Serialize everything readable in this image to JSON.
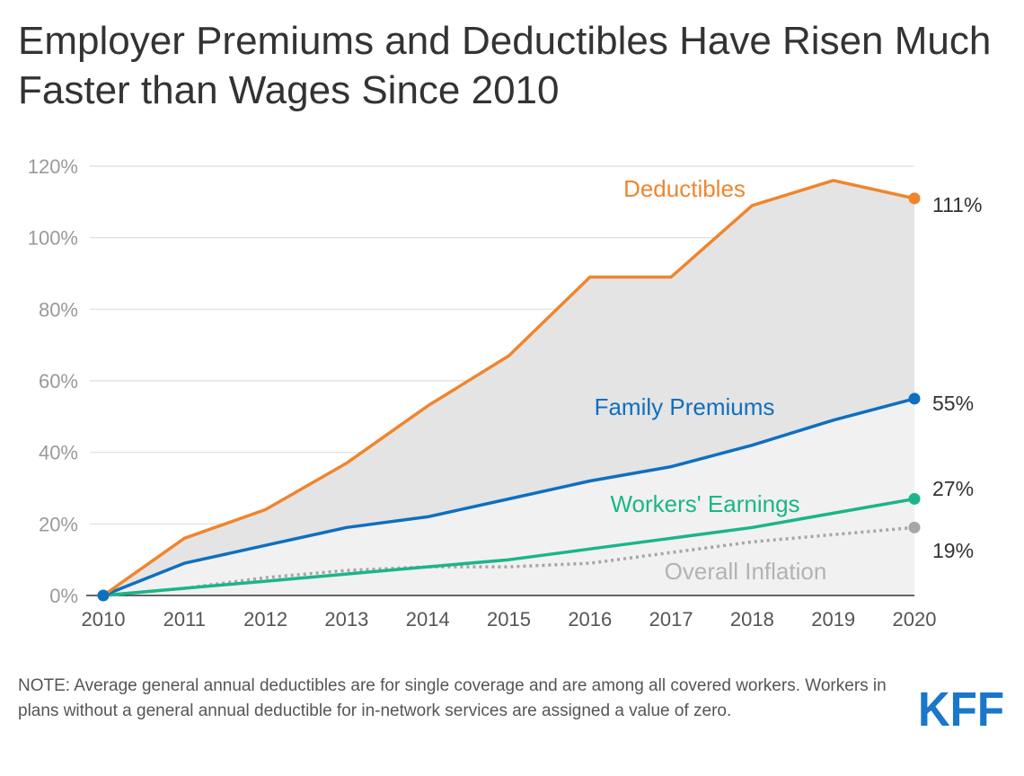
{
  "title": "Employer Premiums and Deductibles Have Risen Much Faster than Wages Since 2010",
  "note": "NOTE: Average general annual deductibles are for single coverage and are among all covered workers. Workers in plans without a general annual deductible for in-network services are assigned a value of zero.",
  "logo_text": "KFF",
  "colors": {
    "deductibles": "#f0852d",
    "family": "#0f6fbf",
    "earnings": "#1bb58a",
    "inflation": "#a6a6a6",
    "logo": "#1a77c9"
  },
  "chart_data": {
    "type": "line",
    "title": "Employer Premiums and Deductibles Have Risen Much Faster than Wages Since 2010",
    "xlabel": "",
    "ylabel": "",
    "x": [
      "2010",
      "2011",
      "2012",
      "2013",
      "2014",
      "2015",
      "2016",
      "2017",
      "2018",
      "2019",
      "2020"
    ],
    "ylim": [
      0,
      120
    ],
    "yticks": [
      "0%",
      "20%",
      "40%",
      "60%",
      "80%",
      "100%",
      "120%"
    ],
    "grid": true,
    "series": [
      {
        "key": "deductibles",
        "name": "Deductibles",
        "values": [
          0,
          16,
          24,
          37,
          53,
          67,
          89,
          89,
          109,
          116,
          111
        ],
        "end_label": "111%",
        "style": "solid"
      },
      {
        "key": "family",
        "name": "Family Premiums",
        "values": [
          0,
          9,
          14,
          19,
          22,
          27,
          32,
          36,
          42,
          49,
          55
        ],
        "end_label": "55%",
        "style": "solid"
      },
      {
        "key": "earnings",
        "name": "Workers' Earnings",
        "values": [
          0,
          2,
          4,
          6,
          8,
          10,
          13,
          16,
          19,
          23,
          27
        ],
        "end_label": "27%",
        "style": "solid"
      },
      {
        "key": "inflation",
        "name": "Overall Inflation",
        "values": [
          0,
          2,
          5,
          7,
          8,
          8,
          9,
          12,
          15,
          17,
          19
        ],
        "end_label": "19%",
        "style": "dotted"
      }
    ]
  }
}
